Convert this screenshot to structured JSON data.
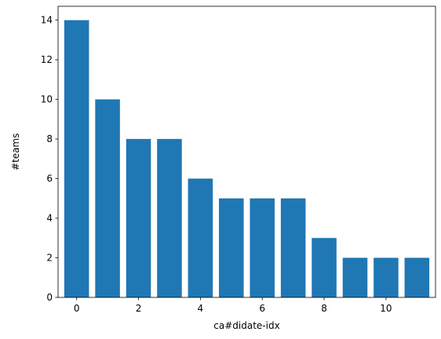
{
  "chart_data": {
    "type": "bar",
    "title": "",
    "xlabel": "ca#didate-idx",
    "ylabel": "#teams",
    "x": [
      0,
      1,
      2,
      3,
      4,
      5,
      6,
      7,
      8,
      9,
      10,
      11
    ],
    "values": [
      14,
      10,
      8,
      8,
      6,
      5,
      5,
      5,
      3,
      2,
      2,
      2
    ],
    "xlim": [
      -0.6,
      11.6
    ],
    "ylim": [
      0,
      14.7
    ],
    "xticks": [
      0,
      2,
      4,
      6,
      8,
      10
    ],
    "yticks": [
      0,
      2,
      4,
      6,
      8,
      10,
      12,
      14
    ],
    "grid": false,
    "bar_color": "#1f77b4"
  }
}
